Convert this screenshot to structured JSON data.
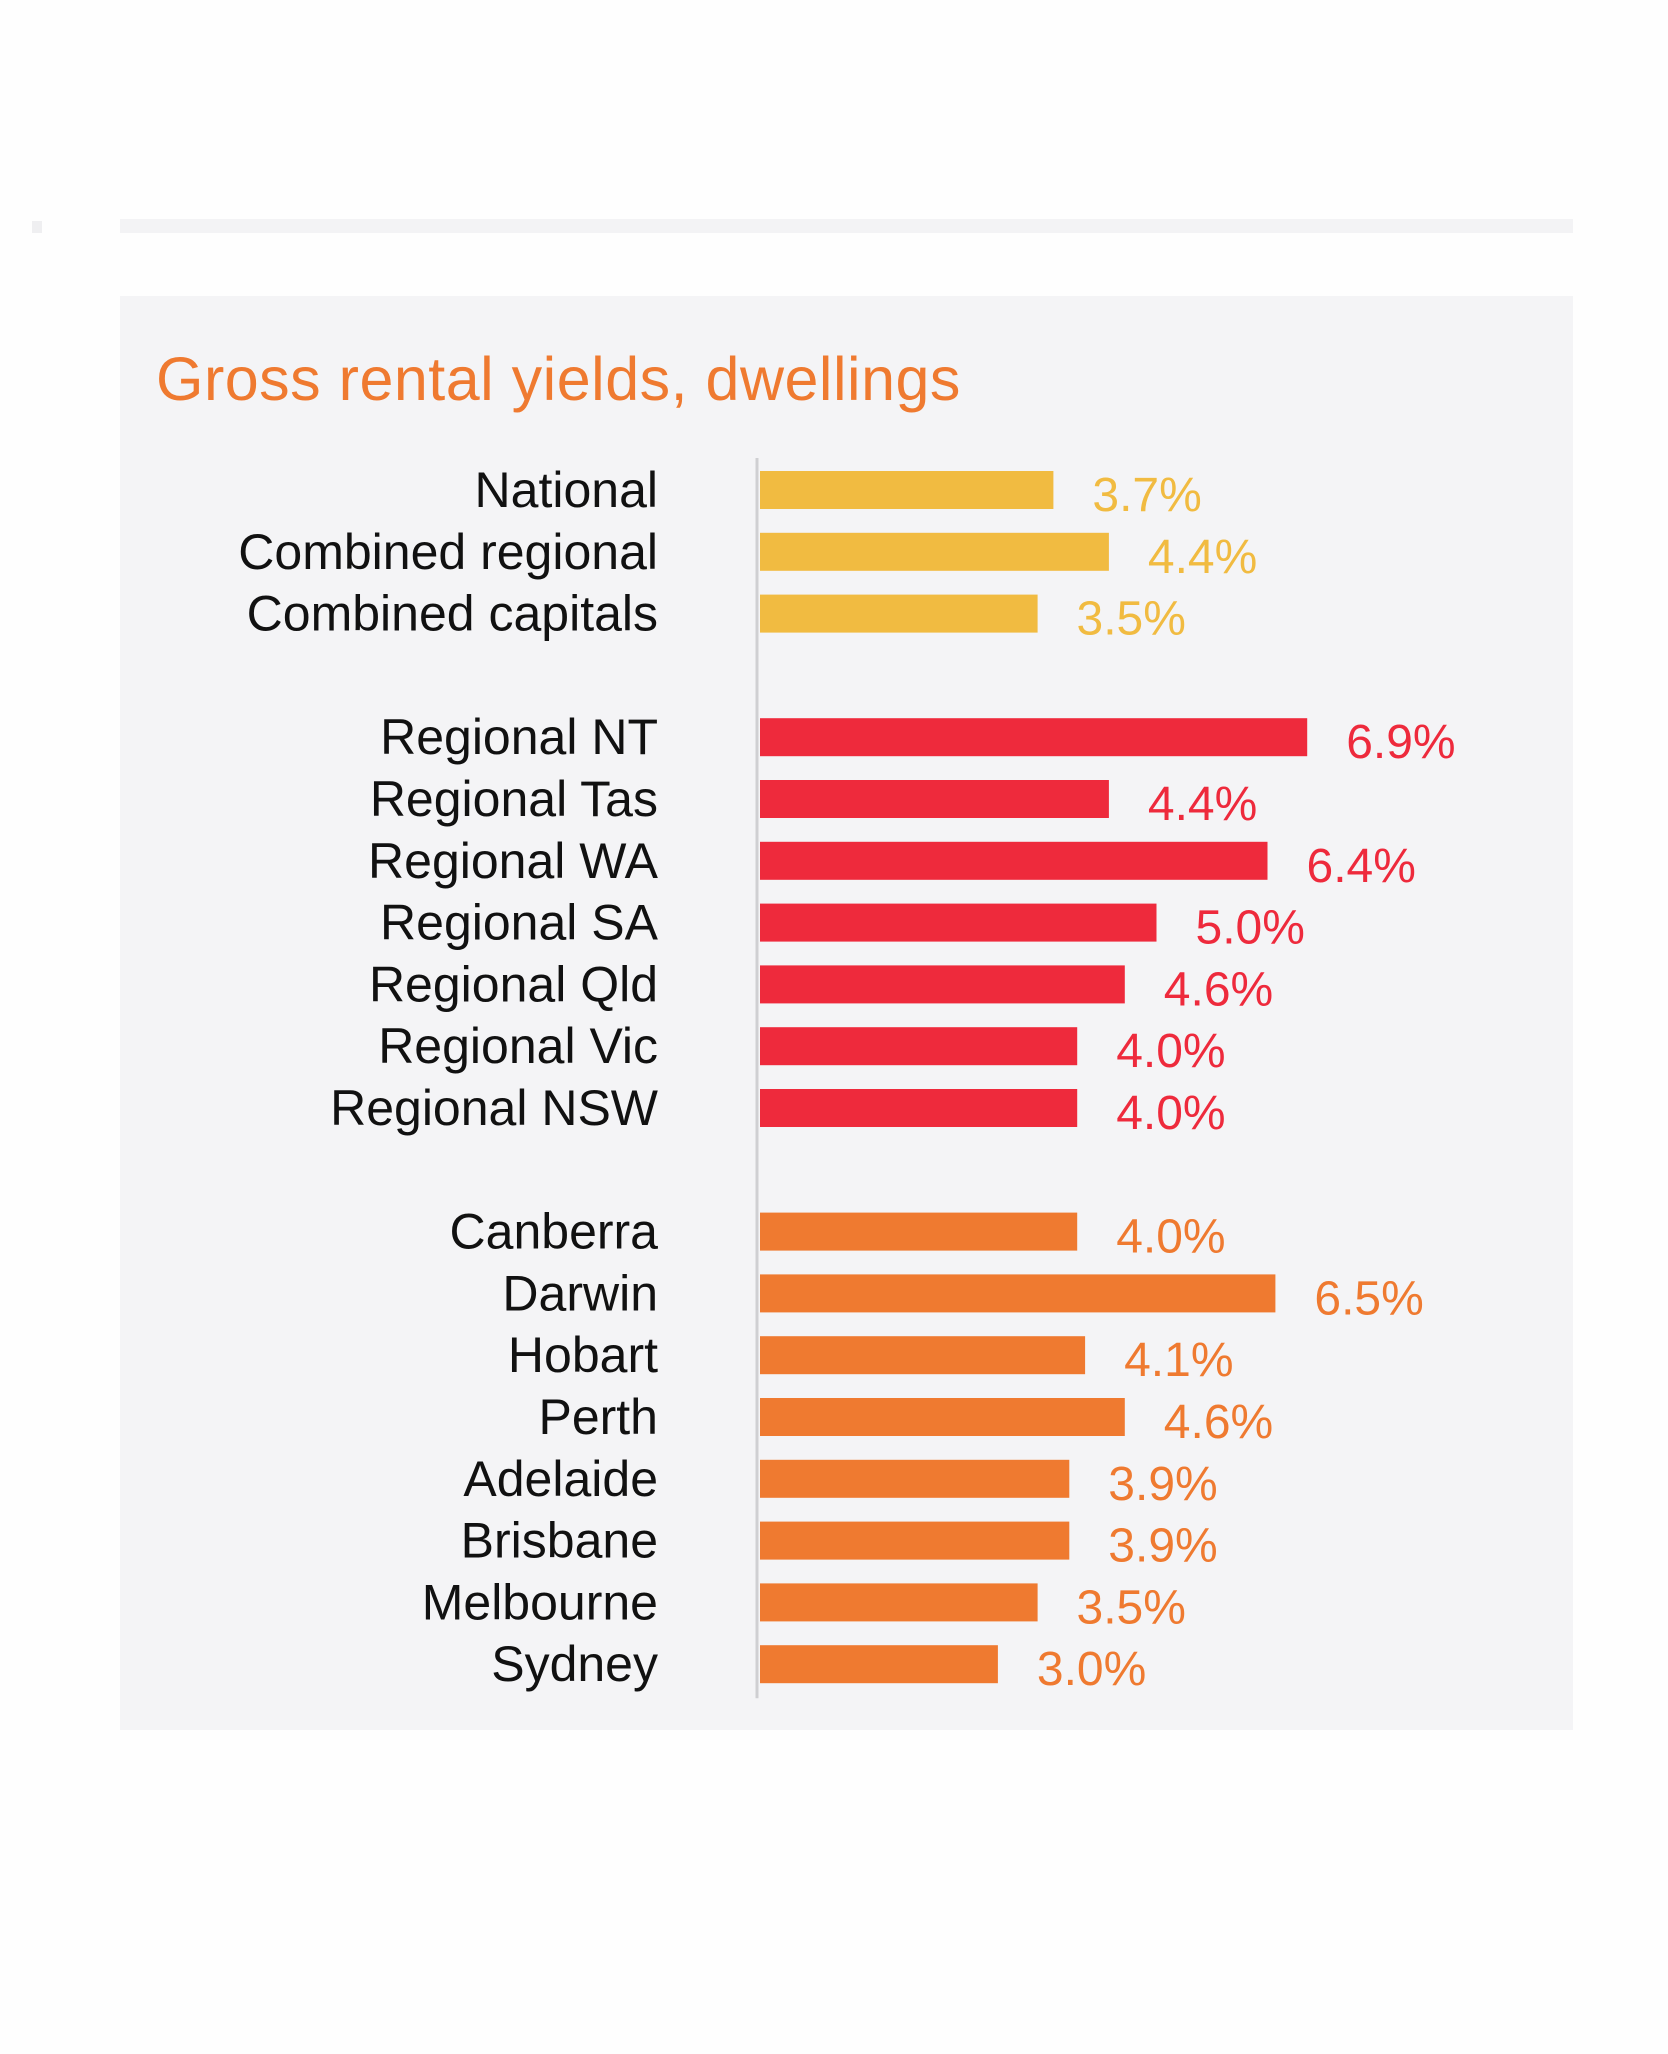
{
  "chart_data": {
    "type": "bar",
    "orientation": "horizontal",
    "title": "Gross rental yields, dwellings",
    "xlabel": "",
    "ylabel": "",
    "unit": "%",
    "xlim": [
      0,
      7.5
    ],
    "grid": false,
    "legend": "none",
    "groups": [
      {
        "color": "#f1bb41",
        "items": [
          {
            "category": "National",
            "value": 3.7,
            "label": "3.7%"
          },
          {
            "category": "Combined regional",
            "value": 4.4,
            "label": "4.4%"
          },
          {
            "category": "Combined capitals",
            "value": 3.5,
            "label": "3.5%"
          }
        ]
      },
      {
        "color": "#ee2a3c",
        "items": [
          {
            "category": "Regional NT",
            "value": 6.9,
            "label": "6.9%"
          },
          {
            "category": "Regional Tas",
            "value": 4.4,
            "label": "4.4%"
          },
          {
            "category": "Regional WA",
            "value": 6.4,
            "label": "6.4%"
          },
          {
            "category": "Regional SA",
            "value": 5.0,
            "label": "5.0%"
          },
          {
            "category": "Regional Qld",
            "value": 4.6,
            "label": "4.6%"
          },
          {
            "category": "Regional Vic",
            "value": 4.0,
            "label": "4.0%"
          },
          {
            "category": "Regional NSW",
            "value": 4.0,
            "label": "4.0%"
          }
        ]
      },
      {
        "color": "#ef7a30",
        "items": [
          {
            "category": "Canberra",
            "value": 4.0,
            "label": "4.0%"
          },
          {
            "category": "Darwin",
            "value": 6.5,
            "label": "6.5%"
          },
          {
            "category": "Hobart",
            "value": 4.1,
            "label": "4.1%"
          },
          {
            "category": "Perth",
            "value": 4.6,
            "label": "4.6%"
          },
          {
            "category": "Adelaide",
            "value": 3.9,
            "label": "3.9%"
          },
          {
            "category": "Brisbane",
            "value": 3.9,
            "label": "3.9%"
          },
          {
            "category": "Melbourne",
            "value": 3.5,
            "label": "3.5%"
          },
          {
            "category": "Sydney",
            "value": 3.0,
            "label": "3.0%"
          }
        ]
      }
    ]
  }
}
